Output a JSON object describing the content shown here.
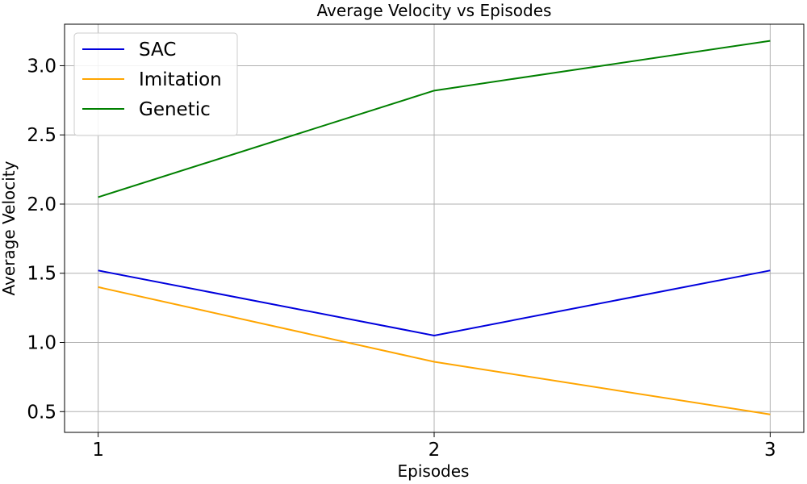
{
  "chart_data": {
    "type": "line",
    "title": "Average Velocity vs Episodes",
    "xlabel": "Episodes",
    "ylabel": "Average Velocity",
    "x": [
      1,
      2,
      3
    ],
    "x_ticks": [
      "1",
      "2",
      "3"
    ],
    "y_ticks": [
      "0.5",
      "1.0",
      "1.5",
      "2.0",
      "2.5",
      "3.0"
    ],
    "xlim": [
      0.9,
      3.1
    ],
    "ylim": [
      0.35,
      3.3
    ],
    "grid": true,
    "legend_position": "top-left",
    "series": [
      {
        "name": "SAC",
        "color": "#0000dd",
        "values": [
          1.52,
          1.05,
          1.52
        ]
      },
      {
        "name": "Imitation",
        "color": "#ffa500",
        "values": [
          1.4,
          0.86,
          0.48
        ]
      },
      {
        "name": "Genetic",
        "color": "#008000",
        "values": [
          2.05,
          2.82,
          3.18
        ]
      }
    ]
  }
}
